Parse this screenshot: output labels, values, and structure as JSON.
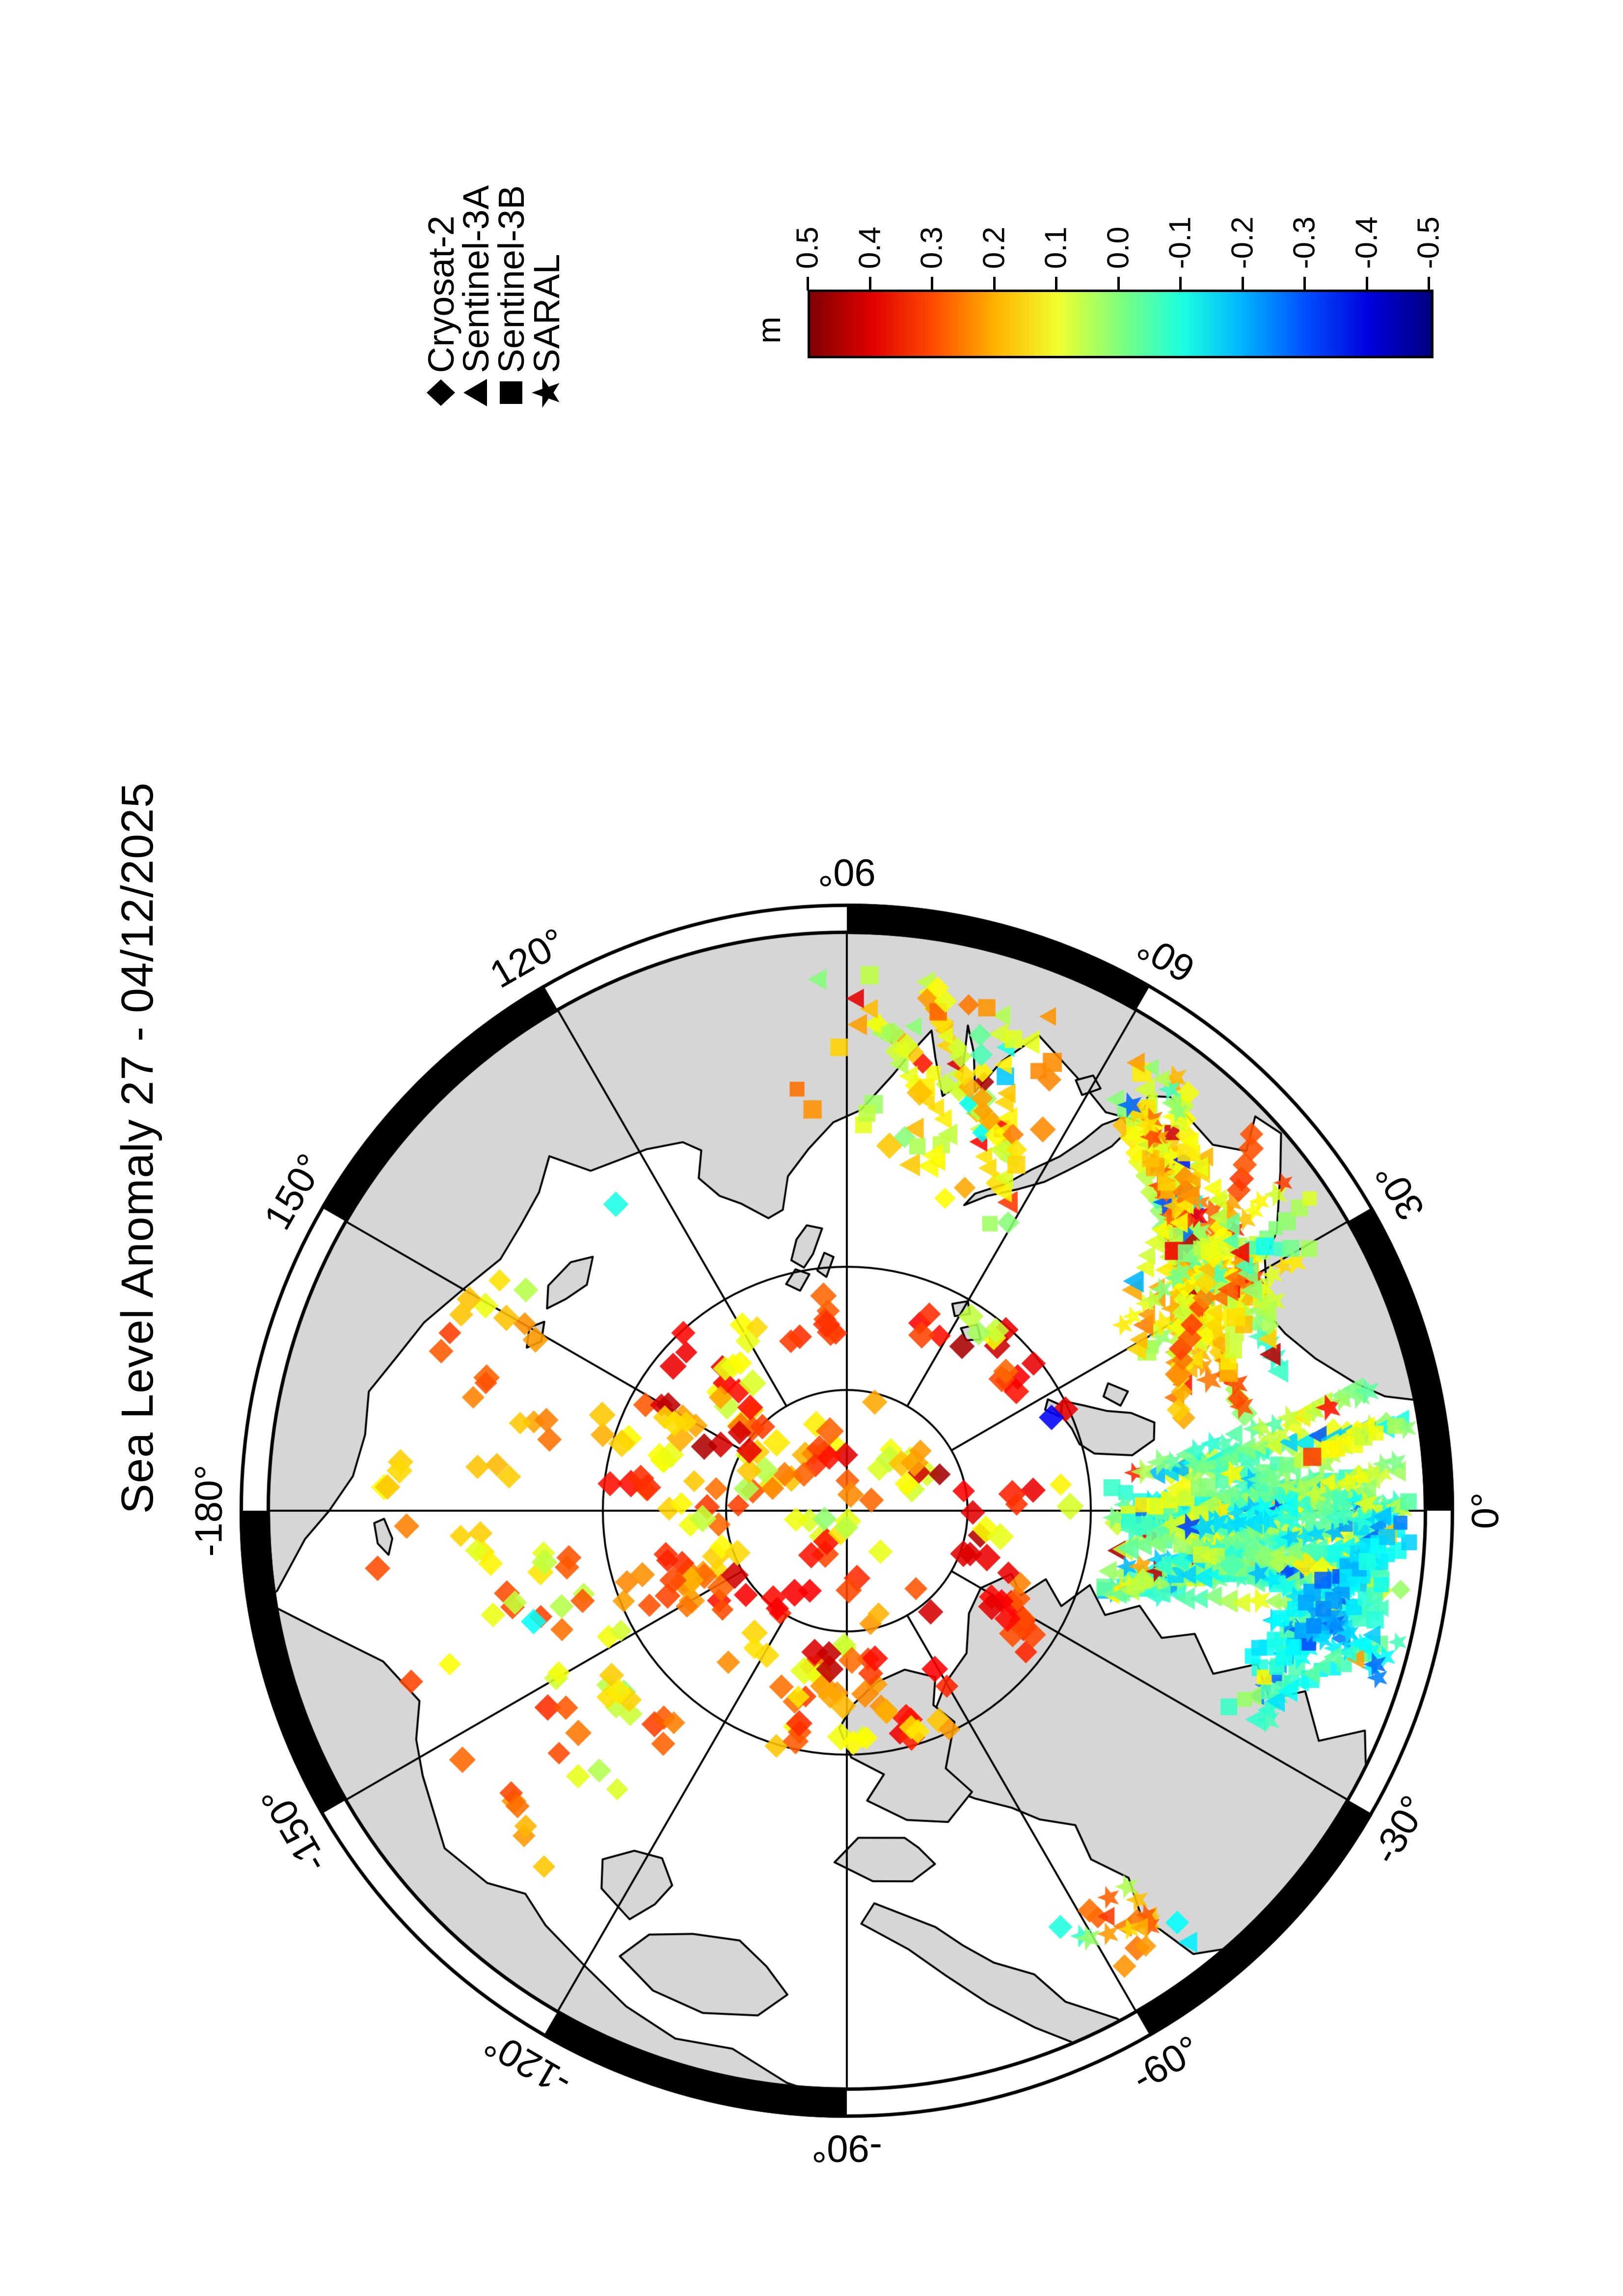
{
  "title": "Sea Level Anomaly 27 - 04/12/2025",
  "legend": {
    "items": [
      {
        "symbol": "diamond",
        "label": "Cryosat-2"
      },
      {
        "symbol": "triangle",
        "label": "Sentinel-3A"
      },
      {
        "symbol": "square",
        "label": "Sentinel-3B"
      },
      {
        "symbol": "star",
        "label": "SARAL"
      }
    ]
  },
  "colorbar": {
    "unit": "m",
    "min": -0.5,
    "max": 0.5,
    "tick_step": 0.1,
    "tick_labels": [
      "0.5",
      "0.4",
      "0.3",
      "0.2",
      "0.1",
      "0.0",
      "-0.1",
      "-0.2",
      "-0.3",
      "-0.4",
      "-0.5"
    ],
    "colormap": "jet",
    "gradient_stops": [
      "#800000",
      "#e10000",
      "#ff4d00",
      "#ffb300",
      "#f0ff2e",
      "#7dff7d",
      "#1affe0",
      "#00b0ff",
      "#004dff",
      "#0000dd",
      "#000080"
    ]
  },
  "map": {
    "projection": "north-polar-stereographic",
    "boundary_lat_deg": 67,
    "lat_circles_deg": [
      85,
      80
    ],
    "meridian_step_deg": 30,
    "rim_black_segment_start_lons": [
      -180,
      -120,
      -60,
      0,
      60,
      120
    ],
    "lon_labels": [
      {
        "lon": 0,
        "text": "0°",
        "rot": 0
      },
      {
        "lon": 30,
        "text": "30°",
        "rot": -30
      },
      {
        "lon": 60,
        "text": "60°",
        "rot": -60
      },
      {
        "lon": 90,
        "text": "90°",
        "rot": -90
      },
      {
        "lon": 120,
        "text": "120°",
        "rot": 60
      },
      {
        "lon": 150,
        "text": "150°",
        "rot": 30
      },
      {
        "lon": -180,
        "text": "-180°",
        "rot": 0
      },
      {
        "lon": -150,
        "text": "-150°",
        "rot": -30
      },
      {
        "lon": -120,
        "text": "-120°",
        "rot": -60
      },
      {
        "lon": -90,
        "text": "-90°",
        "rot": -90
      },
      {
        "lon": -60,
        "text": "-60°",
        "rot": 60
      },
      {
        "lon": -30,
        "text": "-30°",
        "rot": 30
      }
    ],
    "land_color": "#d6d6d6",
    "coast_color": "#000000"
  },
  "chart_data": {
    "type": "scatter",
    "title": "Sea Level Anomaly 27 - 04/12/2025",
    "value_units": "m",
    "value_range": [
      -0.5,
      0.5
    ],
    "series": [
      {
        "name": "Cryosat-2",
        "symbol": "diamond",
        "coverage": "central Arctic sparse diamonds, mostly +0.1 to +0.4 m"
      },
      {
        "name": "Sentinel-3A",
        "symbol": "triangle",
        "coverage": "dense crossing tracks Barents/Norwegian/Atlantic seas"
      },
      {
        "name": "Sentinel-3B",
        "symbol": "square",
        "coverage": "dense crossing tracks Barents/Norwegian/Atlantic seas"
      },
      {
        "name": "SARAL",
        "symbol": "star",
        "coverage": "dense crossing tracks, sub-polar seas"
      }
    ],
    "render_seed": 20250412,
    "tracks": [
      {
        "name": "barents_kara_warm",
        "count": 26,
        "a": {
          "lon": [
            13,
            42
          ],
          "lat": [
            70.5,
            76.5
          ]
        },
        "b": {
          "lon": [
            28,
            62
          ],
          "lat": [
            67.1,
            71
          ]
        },
        "base": [
          0.0,
          0.24
        ],
        "amp": 0.09,
        "sym": "ttssaad",
        "step": 27,
        "size": [
          32,
          44
        ],
        "outlier": 0.06
      },
      {
        "name": "norwegian_greenland_mixed",
        "count": 30,
        "a": {
          "lon": [
            -18,
            8
          ],
          "lat": [
            75.5,
            79
          ]
        },
        "b": {
          "lon": [
            -12,
            14
          ],
          "lat": [
            66.9,
            69
          ]
        },
        "base": [
          -0.13,
          0.09
        ],
        "amp": 0.08,
        "sym": "ttssaad",
        "step": 27,
        "size": [
          32,
          44
        ],
        "outlier": 0.05
      },
      {
        "name": "ne_atlantic_cold",
        "count": 13,
        "a": {
          "lon": [
            -30,
            -8
          ],
          "lat": [
            70,
            73.5
          ]
        },
        "b": {
          "lon": [
            -20,
            3
          ],
          "lat": [
            66.9,
            68.2
          ]
        },
        "base": [
          -0.22,
          -0.05
        ],
        "amp": 0.06,
        "sym": "tssa",
        "step": 27,
        "size": [
          32,
          42
        ],
        "outlier": 0.04
      },
      {
        "name": "kara_ob",
        "count": 6,
        "a": {
          "lon": [
            62,
            78
          ],
          "lat": [
            73,
            76
          ]
        },
        "b": {
          "lon": [
            70,
            90
          ],
          "lat": [
            68,
            71
          ]
        },
        "base": [
          0.04,
          0.2
        ],
        "amp": 0.07,
        "sym": "tsd",
        "step": 28,
        "size": [
          32,
          42
        ],
        "outlier": 0.05
      }
    ],
    "scatter_clusters": [
      {
        "name": "central_arctic",
        "mode": "polar",
        "rmin": 20,
        "rmax": 500,
        "count": 95,
        "chain": [
          1,
          4
        ],
        "v": [
          0.08,
          0.42
        ],
        "sym": "d",
        "size": [
          36,
          46
        ]
      },
      {
        "name": "beaufort_chukchi",
        "mode": "lonlat",
        "lon": [
          -178,
          -128
        ],
        "lat": [
          70.5,
          79
        ],
        "count": 30,
        "chain": [
          1,
          2
        ],
        "v": [
          0.05,
          0.33
        ],
        "sym": "d",
        "size": [
          36,
          44
        ]
      },
      {
        "name": "ess_laptev",
        "mode": "lonlat",
        "lon": [
          140,
          178
        ],
        "lat": [
          70.5,
          77.5
        ],
        "count": 16,
        "chain": [
          1,
          2
        ],
        "v": [
          0.02,
          0.3
        ],
        "sym": "d",
        "size": [
          36,
          44
        ]
      },
      {
        "name": "kara_scatter",
        "mode": "lonlat",
        "lon": [
          60,
          95
        ],
        "lat": [
          68,
          77
        ],
        "count": 30,
        "chain": [
          1,
          2
        ],
        "v": [
          0.0,
          0.28
        ],
        "sym": "dts",
        "size": [
          34,
          44
        ]
      },
      {
        "name": "baffin_davis",
        "mode": "lonlat",
        "lon": [
          -63,
          -50
        ],
        "lat": [
          67,
          71
        ],
        "count": 14,
        "chain": [
          1,
          2
        ],
        "v": [
          -0.18,
          0.3
        ],
        "sym": "dta",
        "size": [
          34,
          42
        ]
      }
    ],
    "single_points": [
      {
        "lon": -160.5,
        "lat": 76.3,
        "v": -0.12,
        "sym": "d"
      },
      {
        "lon": 127,
        "lat": 74.2,
        "v": -0.1,
        "sym": "d"
      },
      {
        "lon": 55,
        "lat": 81.7,
        "v": 0.46,
        "sym": "d"
      },
      {
        "lon": 24.5,
        "lat": 80.7,
        "v": -0.38,
        "sym": "d"
      },
      {
        "lon": -8,
        "lat": 74,
        "v": -0.05,
        "sym": "d"
      },
      {
        "lon": -178,
        "lat": 71.9,
        "v": 0.25,
        "sym": "d"
      },
      {
        "lon": -173,
        "lat": 70.6,
        "v": 0.3,
        "sym": "d"
      }
    ]
  },
  "land_polygons": {
    "greenland": [
      -52,
      67,
      -54,
      69.5,
      -52.5,
      71,
      -55,
      72.5,
      -54,
      74,
      -58,
      75,
      -61,
      76,
      -66,
      77,
      -71,
      78,
      -68,
      79,
      -64,
      80,
      -66,
      81,
      -60,
      81.8,
      -50,
      82.3,
      -40,
      83.4,
      -30,
      83.6,
      -21,
      82.7,
      -26,
      82,
      -19,
      81.3,
      -24,
      80.3,
      -17,
      79.5,
      -22,
      78.5,
      -18,
      77.3,
      -22,
      76,
      -19.5,
      74.8,
      -24,
      73.5,
      -20.5,
      72,
      -24,
      71,
      -21.5,
      69.8,
      -26,
      68.5,
      -23,
      67,
      -30,
      65.5,
      -40,
      64.5,
      -46,
      65.5
    ],
    "ellesmere": [
      -62,
      82.2,
      -70,
      83,
      -80,
      82.8,
      -88,
      82,
      -92,
      81,
      -89,
      79.8,
      -82,
      79,
      -86,
      78,
      -79,
      77,
      -72,
      76.5,
      -66,
      77.3,
      -69,
      78.6,
      -63,
      80.2,
      -66,
      81.2
    ],
    "devon": [
      -80,
      76.3,
      -88,
      76.5,
      -92,
      75.5,
      -86,
      74.7,
      -80,
      74.5,
      -76,
      75,
      -78,
      75.8
    ],
    "baffin_island": [
      -62,
      66.5,
      -66,
      68,
      -68,
      69.5,
      -72,
      70.5,
      -75,
      71.5,
      -78,
      72.5,
      -86,
      73.8,
      -88,
      73,
      -82,
      71.8,
      -78,
      70.5,
      -74,
      69,
      -70,
      67.5,
      -66,
      66,
      -60,
      65
    ],
    "victoria": [
      -100,
      69,
      -106,
      68.6,
      -112,
      68.8,
      -117,
      69.5,
      -115,
      70.8,
      -110,
      71.5,
      -104,
      71.8,
      -100,
      71,
      -97,
      70
    ],
    "banks": [
      -118,
      71,
      -123,
      71.5,
      -125,
      72.5,
      -122,
      73.5,
      -118,
      73.8,
      -115,
      73,
      -116,
      72
    ],
    "north_america": [
      -85,
      65,
      -96,
      66.5,
      -102,
      67.5,
      -108,
      67.3,
      -114,
      67.8,
      -120,
      68.5,
      -126,
      69,
      -130,
      69.5,
      -134,
      68.8,
      -140,
      68.5,
      -148,
      69.5,
      -152,
      70,
      -156,
      70.8,
      -162,
      70,
      -167,
      68,
      -171,
      66,
      -160,
      62,
      -140,
      60,
      -110,
      60,
      -90,
      60
    ],
    "eurasia": [
      5,
      60,
      8,
      63,
      10,
      65,
      12,
      67.5,
      14,
      68.5,
      18,
      69.8,
      22,
      70.6,
      26,
      71,
      28,
      70.5,
      31,
      70,
      33,
      69,
      38,
      67.5,
      41,
      66.5,
      44,
      66.8,
      42,
      68,
      45,
      68.8,
      52,
      68.5,
      54,
      69,
      53,
      70,
      57,
      70.5,
      61,
      70,
      68,
      69,
      71,
      70.5,
      73,
      72,
      74.5,
      70.5,
      76,
      69.5,
      75,
      71.8,
      77,
      72.5,
      79,
      71,
      80,
      70,
      82,
      71,
      84,
      72,
      88,
      73.5,
      92,
      74,
      96,
      75,
      100,
      76,
      102,
      77.3,
      105,
      77.5,
      109,
      76.6,
      112,
      76,
      114,
      75,
      112,
      74,
      114,
      73.4,
      119,
      73,
      123,
      72.8,
      127,
      72.5,
      130,
      71,
      134,
      71.8,
      139,
      72.2,
      144,
      72.4,
      150,
      71.8,
      156,
      71,
      161,
      70.5,
      166,
      69.8,
      171,
      70,
      176,
      69.7,
      180,
      68.8,
      -177,
      67.8,
      -172,
      66.5,
      -170,
      65,
      -165,
      63,
      -180,
      57,
      150,
      55,
      100,
      55,
      60,
      55,
      20,
      55
    ],
    "wrangel": [
      -179,
      71,
      -176.5,
      71.3,
      -174.5,
      71.1,
      -176,
      70.7,
      -178.5,
      70.6
    ],
    "new_siberian_1": [
      135,
      75.2,
      139,
      75.8,
      143,
      75.5,
      146,
      75.1,
      143,
      74.6,
      138,
      74.7
    ],
    "new_siberian_2": [
      148,
      75.3,
      151,
      75.6,
      153,
      75.2,
      150,
      74.9
    ],
    "severnaya_1": [
      95,
      78.3,
      97.5,
      79.3,
      100,
      79.8,
      102.5,
      79.4,
      100.5,
      78.6,
      98,
      78.1
    ],
    "severnaya_2": [
      99,
      80.1,
      102,
      80.7,
      105,
      80.3,
      102,
      79.8
    ],
    "severnaya_3": [
      93,
      79.5,
      95,
      80.3,
      97,
      80,
      95,
      79.3
    ],
    "franz_josef_1": [
      47,
      80.3,
      49,
      80.9,
      51.5,
      80.6,
      49.5,
      80.1
    ],
    "franz_josef_2": [
      52,
      81,
      55,
      81.4,
      58,
      81.1,
      55,
      80.6
    ],
    "franz_josef_3": [
      58,
      80.4,
      61,
      80.8,
      63,
      80.4,
      60,
      80
    ],
    "svalbard_main": [
      11,
      78,
      13,
      79.5,
      16,
      80,
      20,
      80.1,
      24,
      80.3,
      27,
      80,
      24,
      79.3,
      21,
      78.5,
      19,
      77.6,
      16,
      76.8,
      13,
      77
    ],
    "svalbard_edge": [
      21,
      77.9,
      24,
      78.4,
      26,
      78,
      23,
      77.4
    ],
    "svalbard_ne": [
      24,
      80.4,
      27,
      80.8,
      29,
      80.5,
      26,
      80.1
    ],
    "novaya_zemlya": [
      53.5,
      70.5,
      54,
      71.5,
      55.5,
      72.5,
      57,
      73.3,
      59,
      74.2,
      62,
      75,
      66,
      75.8,
      69,
      76.5,
      68,
      75.9,
      64,
      75,
      61.5,
      74,
      59,
      73,
      57.5,
      72,
      56.5,
      71,
      55,
      70.3
    ],
    "vaygach": [
      59,
      69.8,
      60.5,
      70.4,
      62,
      70,
      60.5,
      69.5
    ],
    "jan_mayen": [
      -9,
      70.9,
      -8,
      71.2,
      -7.7,
      70.9
    ]
  },
  "geometry": {
    "pole_x": 1600,
    "pole_y": 1725,
    "map_radius": 1175,
    "rim_outer_radius": 1237,
    "lat85_radius": 246,
    "lat80_radius": 497,
    "label_radius": 1300,
    "projection_unit": 5634
  }
}
